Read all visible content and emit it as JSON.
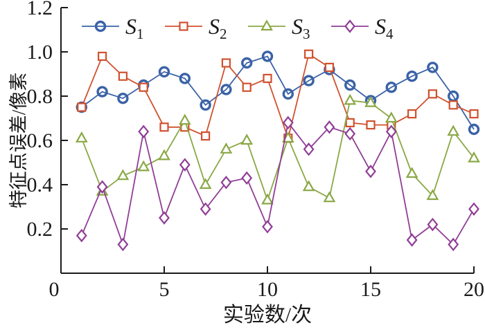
{
  "figure": {
    "background": "#ffffff",
    "axis_color": "#1a1a1a"
  },
  "chart_data": {
    "type": "line",
    "title": "",
    "xlabel": "实验数/次",
    "ylabel": "特征点误差/像素",
    "xlim": [
      0,
      20
    ],
    "ylim": [
      0,
      1.2
    ],
    "grid": "off",
    "legend_position": "top-inside-horizontal",
    "xticks": [
      {
        "v": 0,
        "label": "0"
      },
      {
        "v": 5,
        "label": "5"
      },
      {
        "v": 10,
        "label": "10"
      },
      {
        "v": 15,
        "label": "15"
      },
      {
        "v": 20,
        "label": "20"
      }
    ],
    "yticks": [
      {
        "v": 0.2,
        "label": "0.2"
      },
      {
        "v": 0.4,
        "label": "0.4"
      },
      {
        "v": 0.6,
        "label": "0.6"
      },
      {
        "v": 0.8,
        "label": "0.8"
      },
      {
        "v": 1.0,
        "label": "1.0"
      },
      {
        "v": 1.2,
        "label": "1.2"
      }
    ],
    "x": [
      1,
      2,
      3,
      4,
      5,
      6,
      7,
      8,
      9,
      10,
      11,
      12,
      13,
      14,
      15,
      16,
      17,
      18,
      19,
      20
    ],
    "series": [
      {
        "name": "S",
        "sub": "1",
        "color": "#3a62a6",
        "marker": "circle",
        "marker_stroke": 3.4,
        "line_width": 1.8,
        "values": [
          0.75,
          0.82,
          0.79,
          0.85,
          0.91,
          0.88,
          0.76,
          0.83,
          0.95,
          0.98,
          0.81,
          0.87,
          0.92,
          0.85,
          0.78,
          0.84,
          0.89,
          0.93,
          0.8,
          0.65
        ]
      },
      {
        "name": "S",
        "sub": "2",
        "color": "#d0512e",
        "marker": "square",
        "marker_stroke": 2.2,
        "line_width": 1.8,
        "values": [
          0.75,
          0.98,
          0.89,
          0.84,
          0.66,
          0.66,
          0.62,
          0.95,
          0.84,
          0.88,
          0.61,
          0.99,
          0.93,
          0.68,
          0.67,
          0.67,
          0.72,
          0.81,
          0.76,
          0.72
        ]
      },
      {
        "name": "S",
        "sub": "3",
        "color": "#8aa845",
        "marker": "triangle",
        "marker_stroke": 2.2,
        "line_width": 1.8,
        "values": [
          0.61,
          0.37,
          0.44,
          0.48,
          0.53,
          0.69,
          0.4,
          0.56,
          0.6,
          0.33,
          0.61,
          0.39,
          0.34,
          0.78,
          0.77,
          0.7,
          0.45,
          0.35,
          0.64,
          0.52
        ]
      },
      {
        "name": "S",
        "sub": "4",
        "color": "#903d96",
        "marker": "diamond",
        "marker_stroke": 2.2,
        "line_width": 1.8,
        "values": [
          0.17,
          0.39,
          0.13,
          0.64,
          0.25,
          0.49,
          0.29,
          0.41,
          0.43,
          0.21,
          0.68,
          0.56,
          0.66,
          0.63,
          0.46,
          0.64,
          0.15,
          0.22,
          0.13,
          0.29
        ]
      }
    ]
  }
}
